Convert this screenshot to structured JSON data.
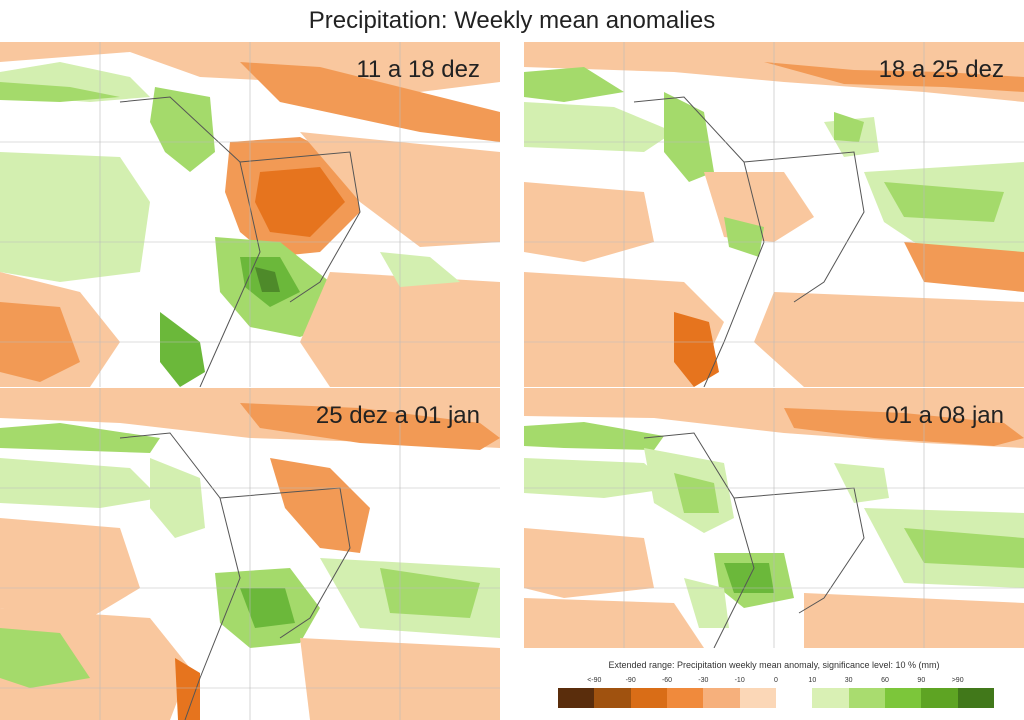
{
  "title": "Precipitation: Weekly mean anomalies",
  "panels": [
    {
      "label": "11 a 18 dez"
    },
    {
      "label": "18 a 25 dez"
    },
    {
      "label": "25 dez a 01 jan"
    },
    {
      "label": "01 a 08 jan"
    }
  ],
  "legend": {
    "title": "Extended range: Precipitation weekly mean anomaly, significance level: 10 % (mm)",
    "ticks": [
      "<-90",
      "-90",
      "-60",
      "-30",
      "-10",
      "0",
      "10",
      "30",
      "60",
      "90",
      ">90"
    ],
    "colors": [
      "#5a2d0c",
      "#a0520f",
      "#d96d17",
      "#f08a3c",
      "#f6b07c",
      "#fbd7b7",
      "#ffffff",
      "#d9f0b4",
      "#a9dc6f",
      "#7cc63a",
      "#5ea423",
      "#41781a"
    ]
  },
  "colors": {
    "dry_strong": "#e6741e",
    "dry_mid": "#f29a55",
    "dry_light": "#f9c79e",
    "wet_light": "#d3efb0",
    "wet_mid": "#a4da6b",
    "wet_strong": "#6bb83a",
    "wet_darkest": "#4e8a2a"
  }
}
